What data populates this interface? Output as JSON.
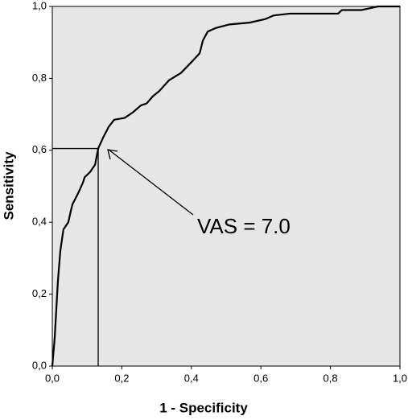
{
  "chart_data": {
    "type": "line",
    "xlabel": "1 - Specificity",
    "ylabel": "Sensitivity",
    "x": [
      0,
      0.007,
      0.016,
      0.023,
      0.032,
      0.046,
      0.053,
      0.058,
      0.074,
      0.088,
      0.093,
      0.109,
      0.123,
      0.132,
      0.146,
      0.162,
      0.178,
      0.208,
      0.231,
      0.255,
      0.271,
      0.289,
      0.308,
      0.336,
      0.37,
      0.405,
      0.424,
      0.433,
      0.447,
      0.47,
      0.51,
      0.567,
      0.613,
      0.637,
      0.683,
      0.822,
      0.833,
      0.89,
      0.937,
      1
    ],
    "values": [
      0,
      0.08,
      0.235,
      0.32,
      0.38,
      0.4,
      0.43,
      0.45,
      0.48,
      0.51,
      0.525,
      0.54,
      0.56,
      0.605,
      0.635,
      0.665,
      0.685,
      0.69,
      0.705,
      0.725,
      0.73,
      0.75,
      0.765,
      0.795,
      0.815,
      0.85,
      0.87,
      0.905,
      0.93,
      0.94,
      0.95,
      0.955,
      0.965,
      0.975,
      0.98,
      0.98,
      0.99,
      0.99,
      1,
      1
    ],
    "color": "#000000",
    "cutoff": {
      "x": 0.132,
      "y": 0.605
    },
    "annotation": "VAS = 7.0",
    "xlim": [
      0,
      1
    ],
    "ylim": [
      0,
      1
    ],
    "xticks": [
      {
        "value": 0,
        "label": "0,0"
      },
      {
        "value": 0.2,
        "label": "0,2"
      },
      {
        "value": 0.4,
        "label": "0,4"
      },
      {
        "value": 0.6,
        "label": "0,6"
      },
      {
        "value": 0.8,
        "label": "0,8"
      },
      {
        "value": 1,
        "label": "1,0"
      }
    ],
    "yticks": [
      {
        "value": 0,
        "label": "0,0"
      },
      {
        "value": 0.2,
        "label": "0,2"
      },
      {
        "value": 0.4,
        "label": "0,4"
      },
      {
        "value": 0.6,
        "label": "0,6"
      },
      {
        "value": 0.8,
        "label": "0,8"
      },
      {
        "value": 1,
        "label": "1,0"
      }
    ]
  }
}
